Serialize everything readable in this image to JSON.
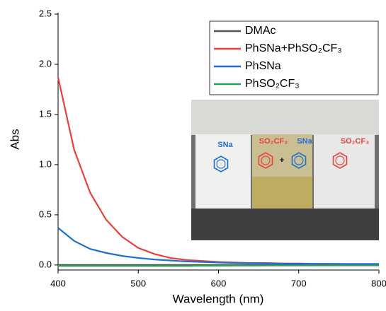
{
  "chart_data": {
    "type": "line",
    "x_label": "Wavelength (nm)",
    "y_label": "Abs",
    "x": [
      400,
      420,
      440,
      460,
      480,
      500,
      520,
      540,
      560,
      580,
      600,
      620,
      640,
      660,
      680,
      700,
      720,
      740,
      760,
      780,
      800
    ],
    "series": [
      {
        "name": "DMAc",
        "color": "#555555",
        "values": [
          0.0,
          0.0,
          0.0,
          0.0,
          0.0,
          0.0,
          0.0,
          0.0,
          0.0,
          0.0,
          0.0,
          0.0,
          0.0,
          0.0,
          0.0,
          0.0,
          0.0,
          0.0,
          0.0,
          0.0,
          0.0
        ]
      },
      {
        "name": "PhSNa+PhSO₂CF₃",
        "color": "#e8413c",
        "values": [
          1.87,
          1.15,
          0.72,
          0.45,
          0.28,
          0.17,
          0.11,
          0.07,
          0.05,
          0.04,
          0.03,
          0.025,
          0.02,
          0.02,
          0.015,
          0.015,
          0.012,
          0.012,
          0.01,
          0.01,
          0.01
        ]
      },
      {
        "name": "PhSNa",
        "color": "#1f6fd1",
        "values": [
          0.37,
          0.24,
          0.16,
          0.12,
          0.09,
          0.07,
          0.055,
          0.045,
          0.035,
          0.03,
          0.025,
          0.02,
          0.018,
          0.015,
          0.013,
          0.012,
          0.01,
          0.01,
          0.01,
          0.01,
          0.01
        ]
      },
      {
        "name": "PhSO₂CF₃",
        "color": "#2e9e5b",
        "values": [
          -0.01,
          -0.01,
          -0.01,
          -0.01,
          -0.01,
          -0.01,
          -0.01,
          -0.01,
          -0.01,
          -0.008,
          -0.008,
          -0.006,
          -0.006,
          -0.005,
          -0.005,
          -0.005,
          -0.004,
          -0.004,
          -0.004,
          -0.004,
          -0.004
        ]
      }
    ],
    "xlim": [
      400,
      800
    ],
    "xticks": [
      400,
      500,
      600,
      700,
      800
    ],
    "ylim": [
      -0.05,
      2.5
    ],
    "yticks": [
      {
        "value": 0,
        "label": "0.0"
      },
      {
        "value": 0.5,
        "label": "0.5"
      },
      {
        "value": 1,
        "label": "1.0"
      },
      {
        "value": 1.5,
        "label": "1.5"
      },
      {
        "value": 2,
        "label": "2.0"
      },
      {
        "value": 2.5,
        "label": "2.5"
      }
    ],
    "legend": "top-right",
    "inset_labels": [
      "SNa",
      "SO₂CF₃",
      "+",
      "SNa",
      "SO₂CF₃"
    ]
  }
}
